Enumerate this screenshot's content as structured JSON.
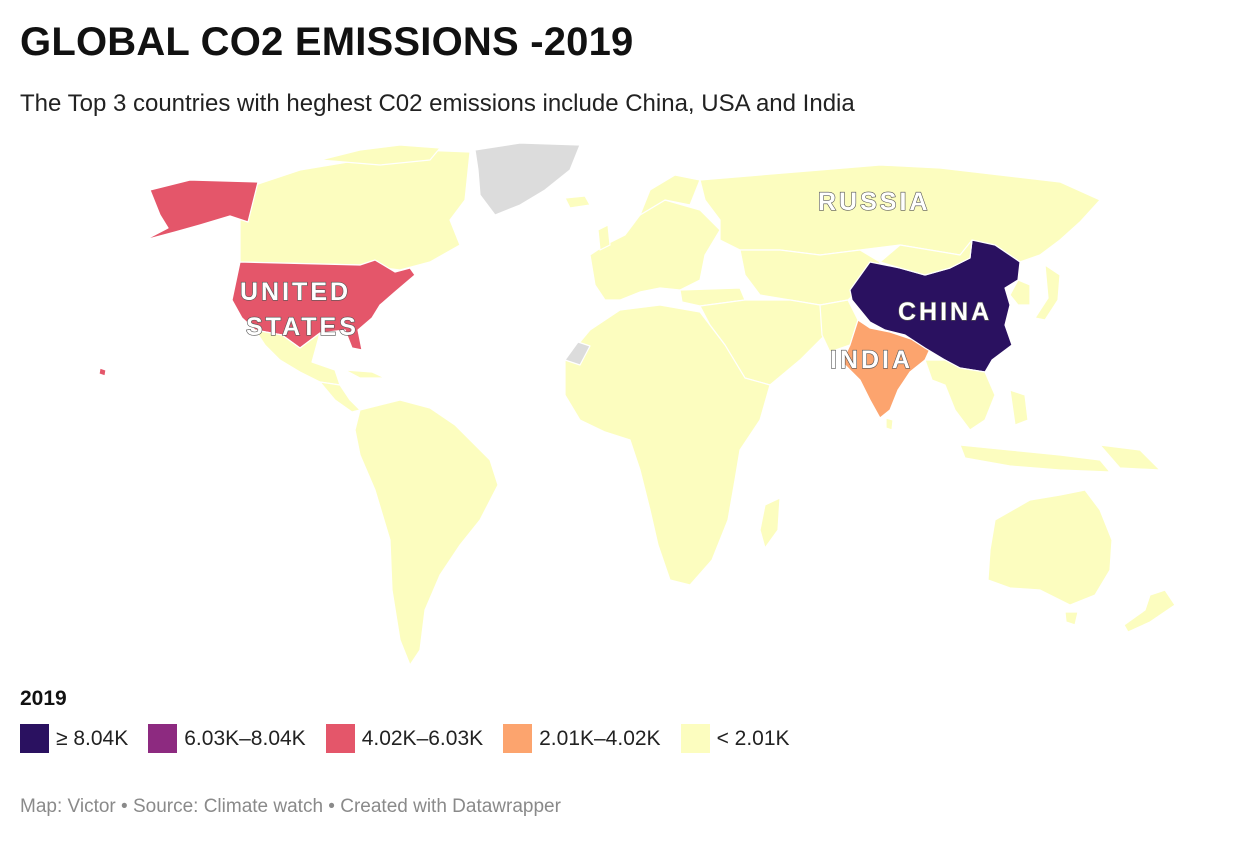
{
  "title": "GLOBAL CO2 EMISSIONS -2019",
  "subtitle": "The Top 3 countries with heghest C02 emissions include China, USA and India",
  "map": {
    "colors": {
      "lowest": "#fcfdbf",
      "no_data": "#dcdcdc",
      "china": "#2a1160",
      "united_states": "#e4566a",
      "india": "#fca46e",
      "border": "#ffffff"
    },
    "labels": {
      "russia": "RUSSIA",
      "united_states_line1": "UNITED",
      "united_states_line2": "STATES",
      "china": "CHINA",
      "india": "INDIA"
    }
  },
  "legend": {
    "title": "2019",
    "items": [
      {
        "label": "≥ 8.04K",
        "color": "#2a1160"
      },
      {
        "label": "6.03K–8.04K",
        "color": "#8d2a80"
      },
      {
        "label": "4.02K–6.03K",
        "color": "#e4566a"
      },
      {
        "label": "2.01K–4.02K",
        "color": "#fca46e"
      },
      {
        "label": "< 2.01K",
        "color": "#fcfdbf"
      }
    ]
  },
  "footer": {
    "text": "Map: Victor • Source: Climate watch • Created with Datawrapper"
  }
}
